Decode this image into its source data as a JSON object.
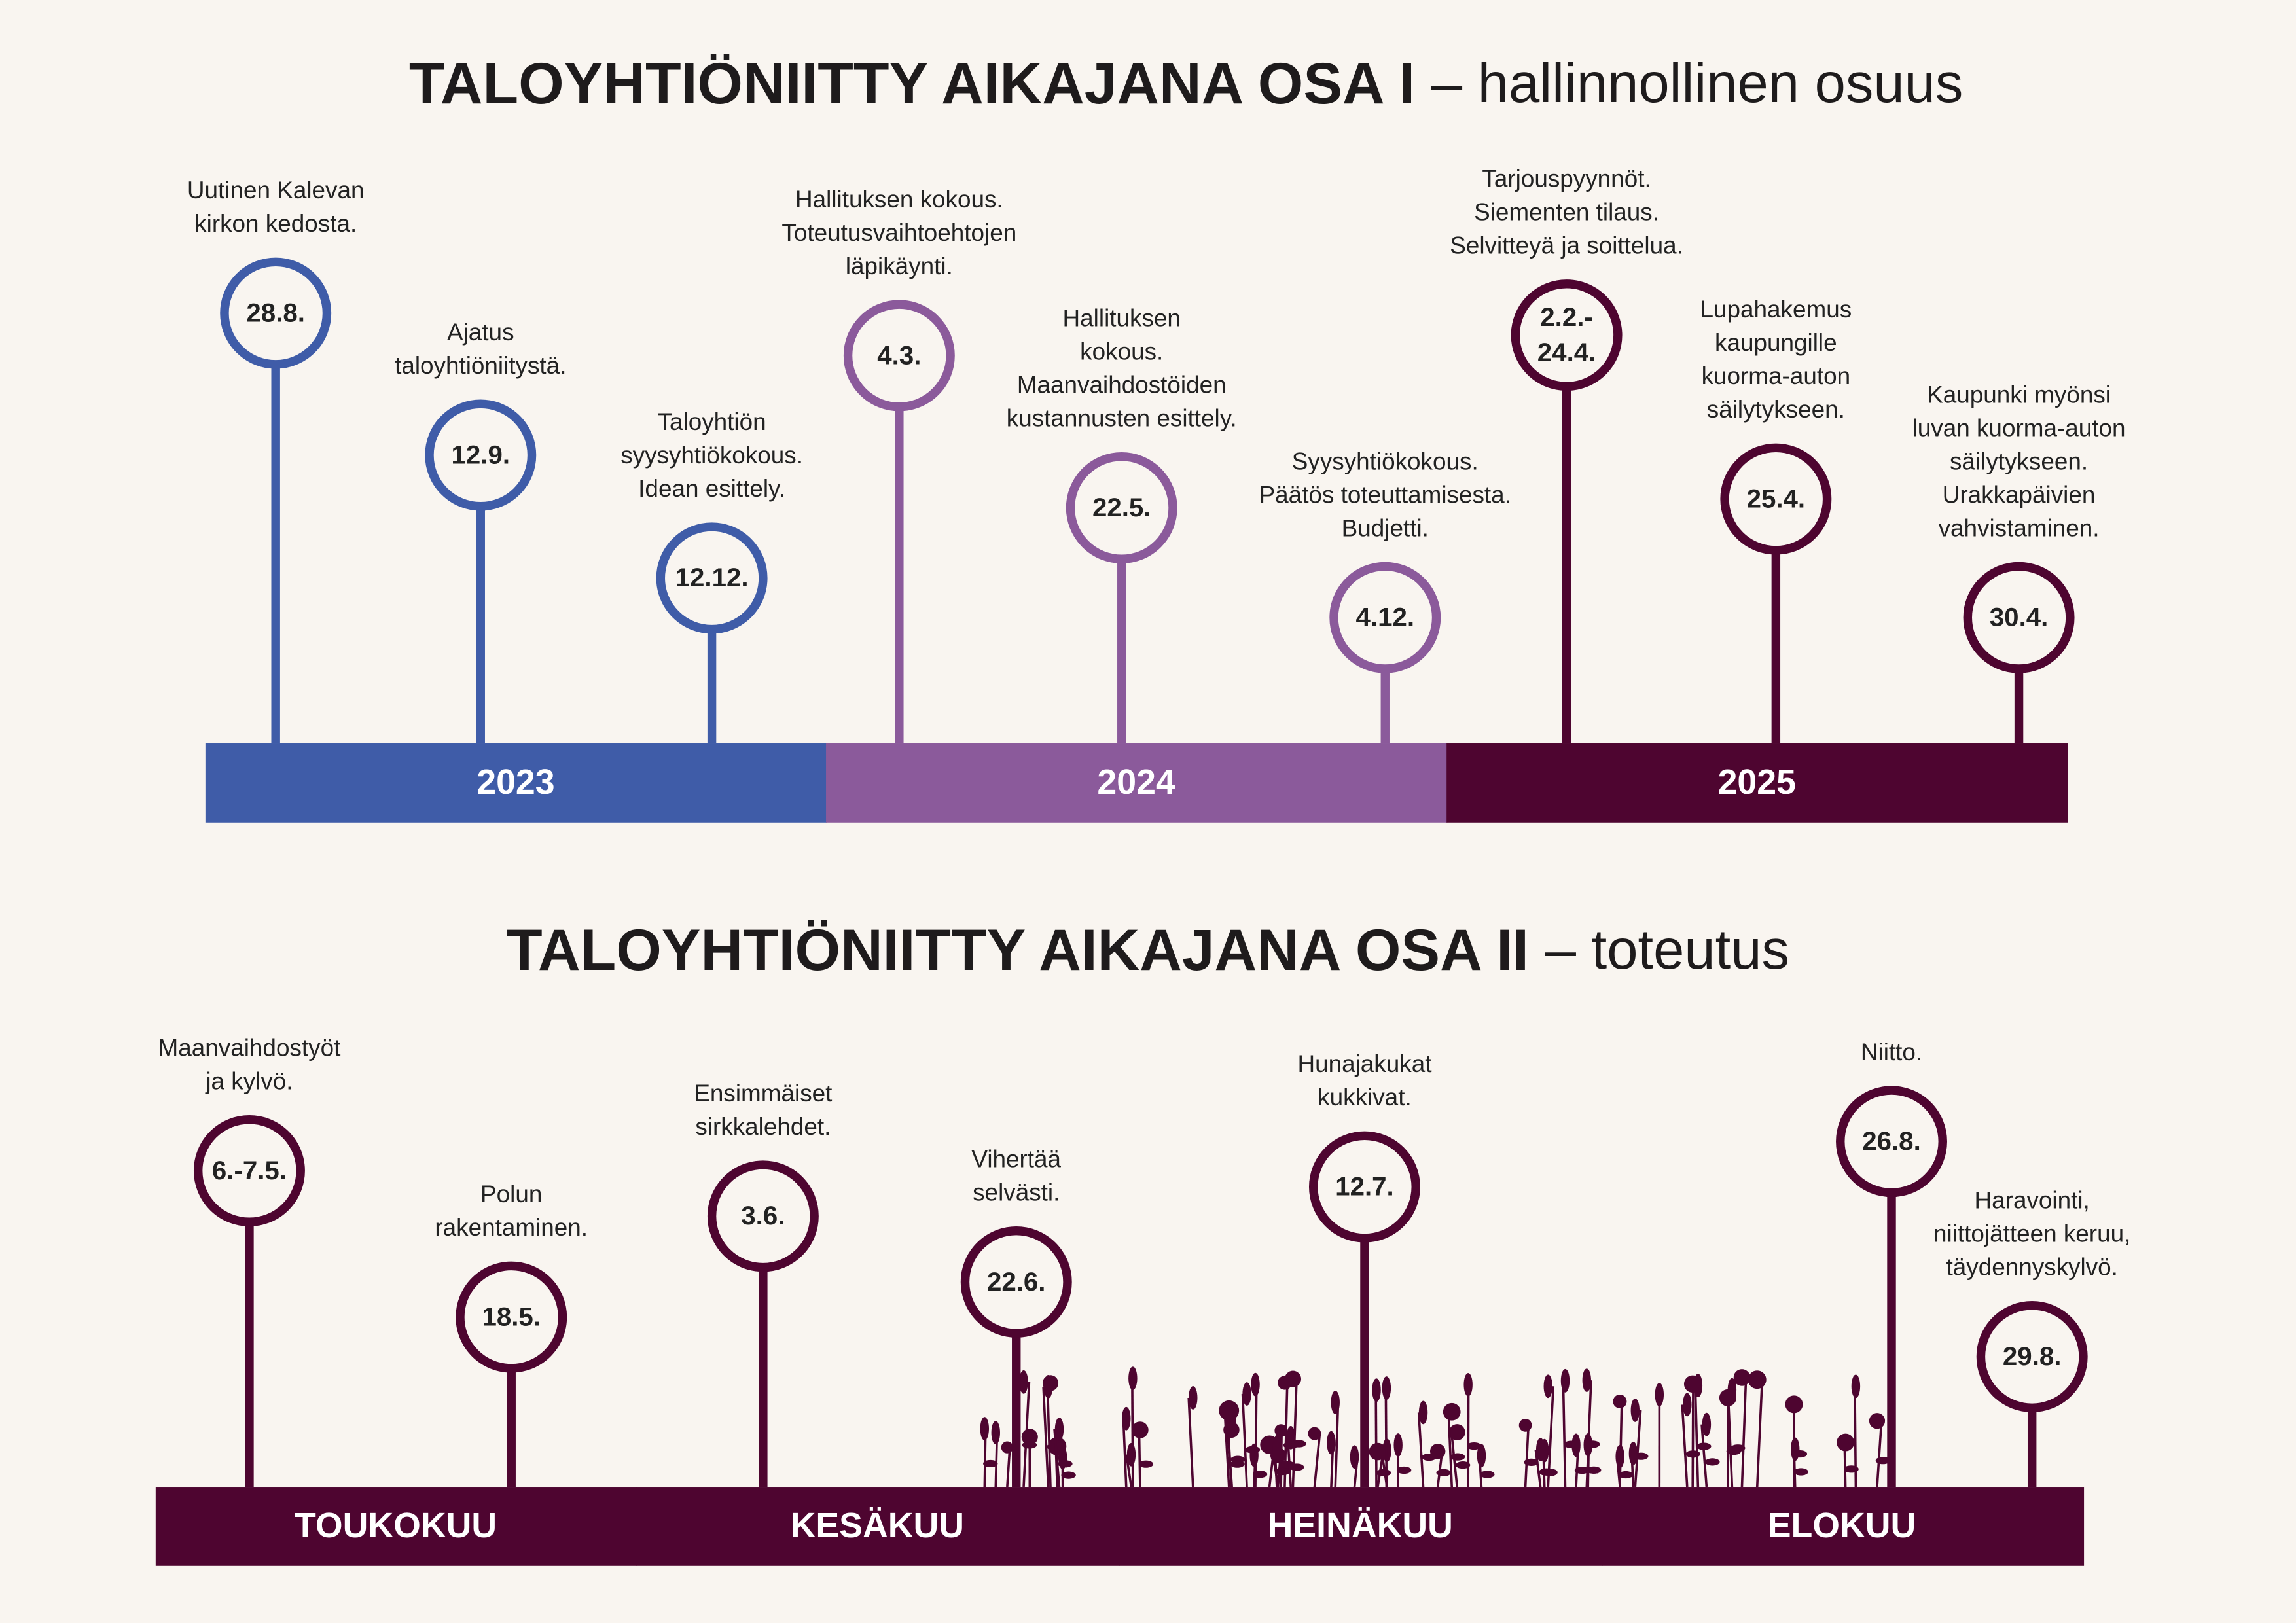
{
  "timeline_1": {
    "title": {
      "bold": "TALOYHTIÖNIITTY AIKAJANA OSA I",
      "light": "– hallinnollinen osuus"
    },
    "segments": [
      "2023",
      "2024",
      "2025"
    ],
    "events": [
      {
        "date": [
          "28.8."
        ],
        "text": [
          "Uutinen Kalevan",
          "kirkon kedosta."
        ]
      },
      {
        "date": [
          "12.9."
        ],
        "text": [
          "Ajatus",
          "taloyhtiöniitystä."
        ]
      },
      {
        "date": [
          "12.12."
        ],
        "text": [
          "Taloyhtiön",
          "syysyhtiökokous.",
          "Idean esittely."
        ]
      },
      {
        "date": [
          "4.3."
        ],
        "text": [
          "Hallituksen kokous.",
          "Toteutusvaihtoehtojen",
          "läpikäynti."
        ]
      },
      {
        "date": [
          "22.5."
        ],
        "text": [
          "Hallituksen",
          "kokous.",
          "Maanvaihdostöiden",
          "kustannusten esittely."
        ]
      },
      {
        "date": [
          "4.12."
        ],
        "text": [
          "Syysyhtiökokous.",
          "Päätös toteuttamisesta.",
          "Budjetti."
        ]
      },
      {
        "date": [
          "2.2.-",
          "24.4."
        ],
        "text": [
          "Tarjouspyynnöt.",
          "Siementen tilaus.",
          "Selvitteyä ja soittelua."
        ]
      },
      {
        "date": [
          "25.4."
        ],
        "text": [
          "Lupahakemus",
          "kaupungille",
          "kuorma-auton",
          "säilytykseen."
        ]
      },
      {
        "date": [
          "30.4."
        ],
        "text": [
          "Kaupunki myönsi",
          "luvan kuorma-auton",
          "säilytykseen.",
          "Urakkapäivien",
          "vahvistaminen."
        ]
      }
    ]
  },
  "timeline_2": {
    "title": {
      "bold": "TALOYHTIÖNIITTY AIKAJANA OSA II",
      "light": "– toteutus"
    },
    "segments": [
      "TOUKOKUU",
      "KESÄKUU",
      "HEINÄKUU",
      "ELOKUU"
    ],
    "events": [
      {
        "date": [
          "6.-7.5."
        ],
        "text": [
          "Maanvaihdostyöt",
          "ja kylvö."
        ]
      },
      {
        "date": [
          "18.5."
        ],
        "text": [
          "Polun",
          "rakentaminen."
        ]
      },
      {
        "date": [
          "3.6."
        ],
        "text": [
          "Ensimmäiset",
          "sirkkalehdet."
        ]
      },
      {
        "date": [
          "22.6."
        ],
        "text": [
          "Vihertää",
          "selvästi."
        ]
      },
      {
        "date": [
          "12.7."
        ],
        "text": [
          "Hunajakukat",
          "kukkivat."
        ]
      },
      {
        "date": [
          "26.8."
        ],
        "text": [
          "Niitto."
        ]
      },
      {
        "date": [
          "29.8."
        ],
        "text": [
          "Haravointi,",
          "niittojätteen keruu,",
          "täydennyskylvö."
        ]
      }
    ]
  }
}
